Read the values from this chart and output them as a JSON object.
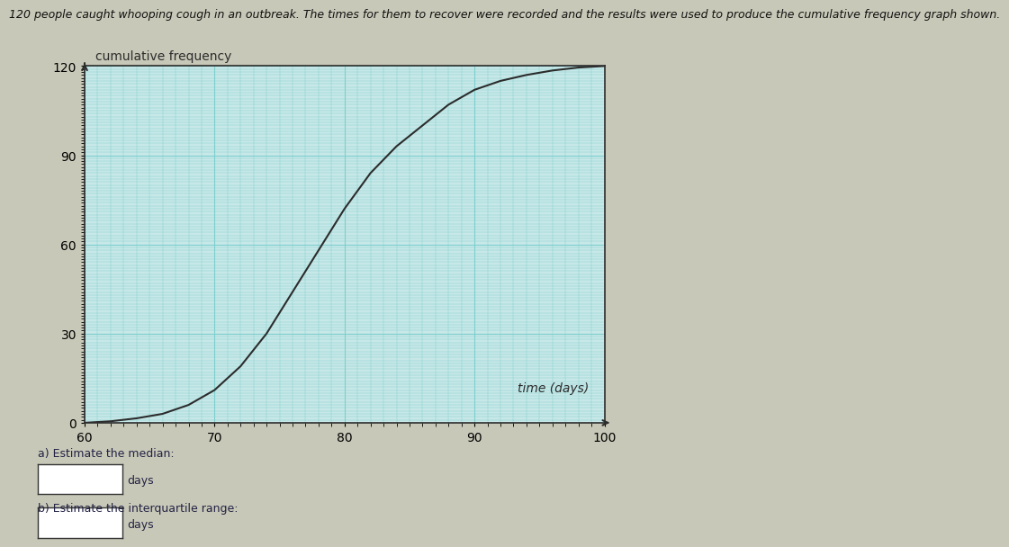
{
  "title": "120 people caught whooping cough in an outbreak. The times for them to recover were recorded and the results were used to produce the cumulative frequency graph shown.",
  "ylabel": "cumulative frequency",
  "xlabel": "time (days)",
  "xlim": [
    60,
    100
  ],
  "ylim": [
    0,
    120
  ],
  "yticks": [
    0,
    30,
    60,
    90,
    120
  ],
  "xticks": [
    60,
    70,
    80,
    90,
    100
  ],
  "curve_x": [
    60,
    62,
    64,
    66,
    68,
    70,
    72,
    74,
    76,
    78,
    80,
    82,
    84,
    86,
    88,
    90,
    92,
    94,
    96,
    98,
    100
  ],
  "curve_y": [
    0,
    0.5,
    1.5,
    3,
    6,
    11,
    19,
    30,
    44,
    58,
    72,
    84,
    93,
    100,
    107,
    112,
    115,
    117,
    118.5,
    119.5,
    120
  ],
  "grid_color": "#7ecece",
  "curve_color": "#2c2c2c",
  "bg_color": "#c8e8e8",
  "outer_bg": "#c8c8b8",
  "axis_color": "#2c2c2c",
  "question_a": "a) Estimate the median:",
  "question_b": "b) Estimate the interquartile range:",
  "days_label": "days",
  "title_fontsize": 9,
  "label_fontsize": 10,
  "tick_fontsize": 10,
  "question_fontsize": 9
}
